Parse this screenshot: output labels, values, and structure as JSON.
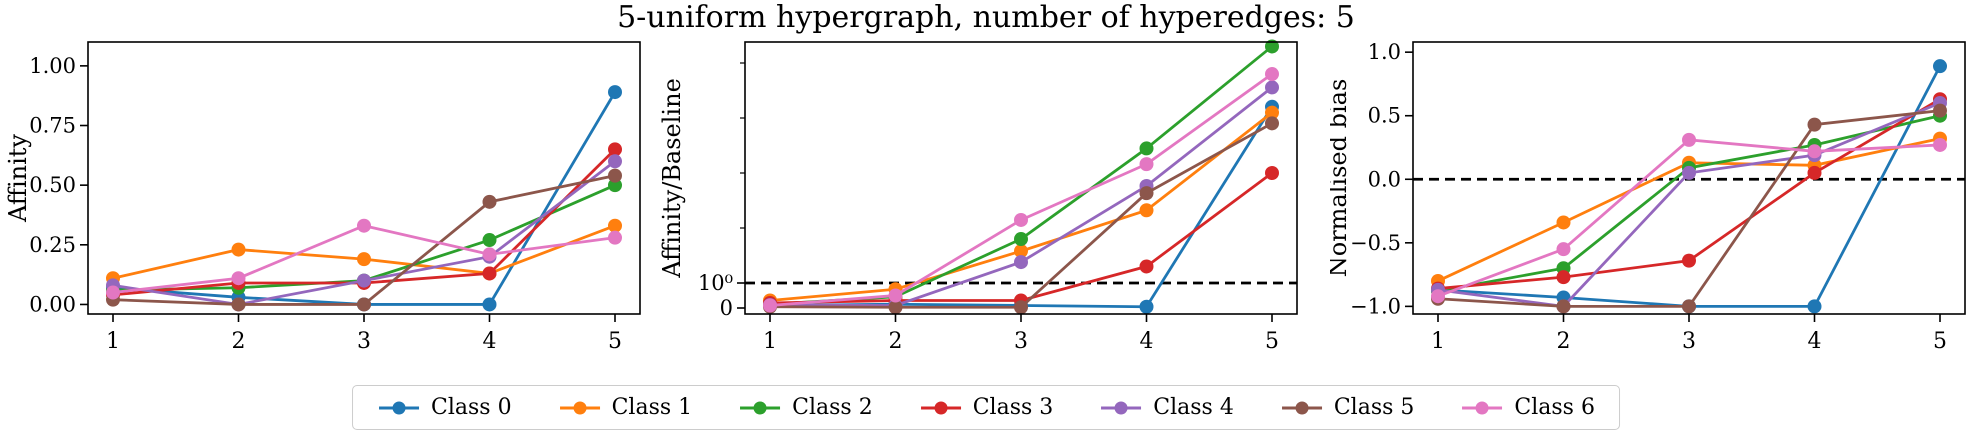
{
  "title": "5-uniform hypergraph, number of hyperedges: 5",
  "legend": {
    "position": "bottom-center",
    "entries": [
      {
        "label": "Class 0",
        "color": "#1f77b4"
      },
      {
        "label": "Class 1",
        "color": "#ff7f0e"
      },
      {
        "label": "Class 2",
        "color": "#2ca02c"
      },
      {
        "label": "Class 3",
        "color": "#d62728"
      },
      {
        "label": "Class 4",
        "color": "#9467bd"
      },
      {
        "label": "Class 5",
        "color": "#8c564b"
      },
      {
        "label": "Class 6",
        "color": "#e377c2"
      }
    ]
  },
  "colors": {
    "background": "#ffffff",
    "axis": "#000000",
    "reference_line": "#000000",
    "legend_border": "#cccccc"
  },
  "chart_data": [
    {
      "id": "affinity",
      "type": "line",
      "ylabel": "Affinity",
      "xlabel": "",
      "scale": "linear",
      "grid": false,
      "x": [
        1,
        2,
        3,
        4,
        5
      ],
      "xticklabels": [
        "1",
        "2",
        "3",
        "4",
        "5"
      ],
      "ylim": [
        -0.04,
        1.1
      ],
      "yticks": [
        {
          "value": 0.0,
          "label": "0.00"
        },
        {
          "value": 0.25,
          "label": "0.25"
        },
        {
          "value": 0.5,
          "label": "0.50"
        },
        {
          "value": 0.75,
          "label": "0.75"
        },
        {
          "value": 1.0,
          "label": "1.00"
        }
      ],
      "reference_line_y": null,
      "series": [
        {
          "name": "Class 0",
          "color": "#1f77b4",
          "values": [
            0.07,
            0.03,
            0.0,
            0.0,
            0.89
          ]
        },
        {
          "name": "Class 1",
          "color": "#ff7f0e",
          "values": [
            0.11,
            0.23,
            0.19,
            0.13,
            0.33
          ]
        },
        {
          "name": "Class 2",
          "color": "#2ca02c",
          "values": [
            0.06,
            0.07,
            0.1,
            0.27,
            0.5
          ]
        },
        {
          "name": "Class 3",
          "color": "#d62728",
          "values": [
            0.04,
            0.09,
            0.09,
            0.13,
            0.65
          ]
        },
        {
          "name": "Class 4",
          "color": "#9467bd",
          "values": [
            0.08,
            0.0,
            0.1,
            0.2,
            0.6
          ]
        },
        {
          "name": "Class 5",
          "color": "#8c564b",
          "values": [
            0.02,
            0.0,
            0.0,
            0.43,
            0.54
          ]
        },
        {
          "name": "Class 6",
          "color": "#e377c2",
          "values": [
            0.05,
            0.11,
            0.33,
            0.21,
            0.28
          ]
        }
      ]
    },
    {
      "id": "affinity-baseline-ratio",
      "type": "line",
      "ylabel": "Affinity/Baseline",
      "xlabel": "",
      "scale": "symlog",
      "grid": false,
      "x": [
        1,
        2,
        3,
        4,
        5
      ],
      "xticklabels": [
        "1",
        "2",
        "3",
        "4",
        "5"
      ],
      "ylim": [
        0,
        25000
      ],
      "yticks": [
        {
          "value": 1,
          "label": "10⁰"
        },
        {
          "value": 0,
          "label": "0"
        }
      ],
      "minor_yticks": [
        10,
        100,
        1000,
        10000
      ],
      "reference_line_y": 1,
      "series": [
        {
          "name": "Class 0",
          "color": "#1f77b4",
          "values": [
            0.1,
            0.15,
            0.1,
            0.05,
            1600
          ]
        },
        {
          "name": "Class 1",
          "color": "#ff7f0e",
          "values": [
            0.3,
            0.75,
            3.8,
            21,
            1250
          ]
        },
        {
          "name": "Class 2",
          "color": "#2ca02c",
          "values": [
            0.15,
            0.45,
            6.3,
            280,
            20000
          ]
        },
        {
          "name": "Class 3",
          "color": "#d62728",
          "values": [
            0.2,
            0.3,
            0.3,
            2.0,
            100
          ]
        },
        {
          "name": "Class 4",
          "color": "#9467bd",
          "values": [
            0.12,
            0.1,
            2.4,
            58,
            3600
          ]
        },
        {
          "name": "Class 5",
          "color": "#8c564b",
          "values": [
            0.05,
            0.03,
            0.03,
            43,
            800
          ]
        },
        {
          "name": "Class 6",
          "color": "#e377c2",
          "values": [
            0.1,
            0.5,
            14,
            145,
            6300
          ]
        }
      ]
    },
    {
      "id": "normalised-bias",
      "type": "line",
      "ylabel": "Normalised bias",
      "xlabel": "",
      "scale": "linear",
      "grid": false,
      "x": [
        1,
        2,
        3,
        4,
        5
      ],
      "xticklabels": [
        "1",
        "2",
        "3",
        "4",
        "5"
      ],
      "ylim": [
        -1.06,
        1.08
      ],
      "yticks": [
        {
          "value": -1.0,
          "label": "−1.0"
        },
        {
          "value": -0.5,
          "label": "−0.5"
        },
        {
          "value": 0.0,
          "label": "0.0"
        },
        {
          "value": 0.5,
          "label": "0.5"
        },
        {
          "value": 1.0,
          "label": "1.0"
        }
      ],
      "reference_line_y": 0,
      "series": [
        {
          "name": "Class 0",
          "color": "#1f77b4",
          "values": [
            -0.87,
            -0.93,
            -1.0,
            -1.0,
            0.89
          ]
        },
        {
          "name": "Class 1",
          "color": "#ff7f0e",
          "values": [
            -0.8,
            -0.34,
            0.13,
            0.11,
            0.32
          ]
        },
        {
          "name": "Class 2",
          "color": "#2ca02c",
          "values": [
            -0.88,
            -0.7,
            0.09,
            0.27,
            0.5
          ]
        },
        {
          "name": "Class 3",
          "color": "#d62728",
          "values": [
            -0.86,
            -0.77,
            -0.64,
            0.05,
            0.63
          ]
        },
        {
          "name": "Class 4",
          "color": "#9467bd",
          "values": [
            -0.87,
            -1.0,
            0.05,
            0.19,
            0.6
          ]
        },
        {
          "name": "Class 5",
          "color": "#8c564b",
          "values": [
            -0.94,
            -1.0,
            -1.0,
            0.43,
            0.54
          ]
        },
        {
          "name": "Class 6",
          "color": "#e377c2",
          "values": [
            -0.92,
            -0.55,
            0.31,
            0.22,
            0.27
          ]
        }
      ]
    }
  ]
}
